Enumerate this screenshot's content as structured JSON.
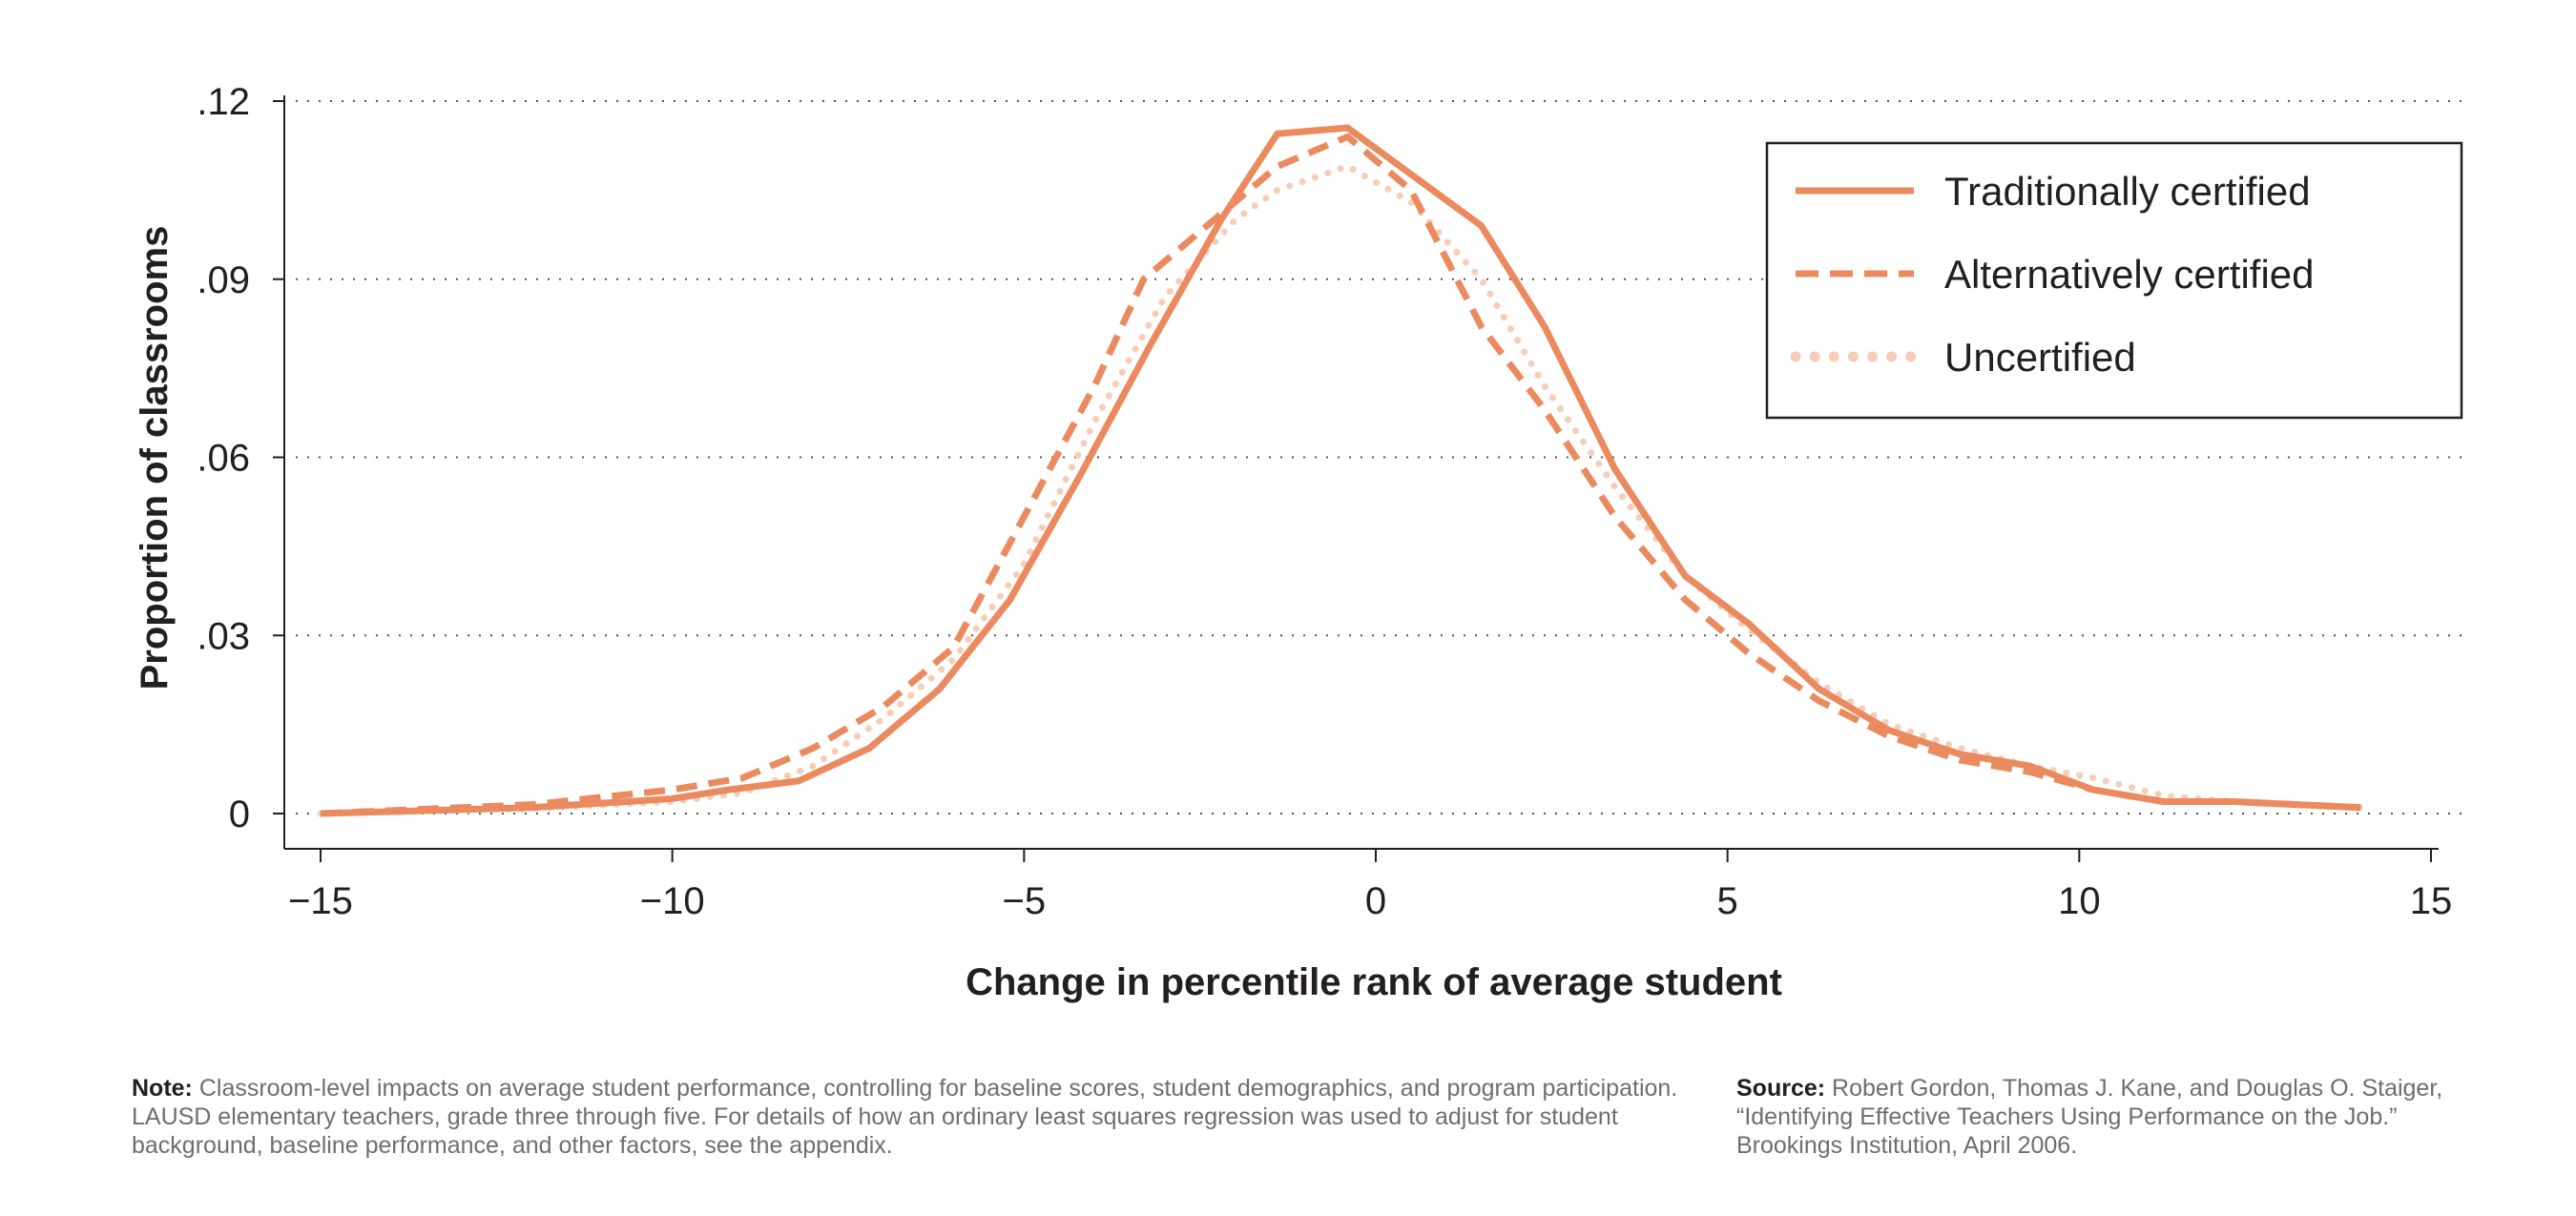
{
  "chart_data": {
    "type": "line",
    "title": "",
    "xlabel": "Change in percentile rank of average student",
    "ylabel": "Proportion of classrooms",
    "xlim": [
      -15,
      15
    ],
    "ylim": [
      0,
      0.12
    ],
    "xticks": [
      -15,
      -10,
      -5,
      0,
      5,
      10,
      15
    ],
    "xtick_labels": [
      "−15",
      "−10",
      "−5",
      "0",
      "5",
      "10",
      "15"
    ],
    "yticks": [
      0,
      0.03,
      0.06,
      0.09,
      0.12
    ],
    "ytick_labels": [
      "0",
      ".03",
      ".06",
      ".09",
      ".12"
    ],
    "grid": "horizontal dotted",
    "legend_position": "top-right",
    "series": [
      {
        "name": "Traditionally certified",
        "style": "solid",
        "color": "#EA8A5E",
        "x": [
          -15,
          -12,
          -10,
          -9.2,
          -8.2,
          -7.2,
          -6.2,
          -5.2,
          -4.2,
          -3.2,
          -2.2,
          -1.4,
          -0.4,
          1.5,
          2.4,
          3.4,
          4.4,
          5.3,
          6.3,
          7.3,
          8.3,
          9.3,
          10.2,
          11.2,
          12.2,
          14
        ],
        "y": [
          0,
          0.001,
          0.0025,
          0.004,
          0.0055,
          0.011,
          0.021,
          0.036,
          0.057,
          0.079,
          0.1,
          0.1145,
          0.1155,
          0.099,
          0.082,
          0.058,
          0.04,
          0.032,
          0.021,
          0.014,
          0.01,
          0.008,
          0.004,
          0.002,
          0.002,
          0.001
        ]
      },
      {
        "name": "Alternatively certified",
        "style": "dashed",
        "color": "#EA8A5E",
        "x": [
          -15,
          -12,
          -10,
          -9,
          -8,
          -7,
          -6,
          -5,
          -4,
          -3.3,
          -2.3,
          -1.4,
          -0.4,
          0.5,
          1.5,
          2.4,
          3.4,
          4.4,
          5.3,
          6.3,
          7.3,
          8.3,
          9.3,
          10.2,
          11.2,
          12.2,
          14
        ],
        "y": [
          0,
          0.0015,
          0.004,
          0.006,
          0.011,
          0.018,
          0.028,
          0.05,
          0.072,
          0.09,
          0.1,
          0.109,
          0.114,
          0.105,
          0.082,
          0.068,
          0.05,
          0.036,
          0.027,
          0.019,
          0.013,
          0.009,
          0.007,
          0.004,
          0.002,
          0.002,
          0.001
        ]
      },
      {
        "name": "Uncertified",
        "style": "dotted",
        "color": "#F6CDB7",
        "x": [
          -15,
          -12,
          -10,
          -9,
          -8,
          -7,
          -6,
          -5,
          -4,
          -3,
          -2,
          -1.4,
          -0.4,
          0.5,
          1.5,
          2.4,
          3.4,
          4.4,
          5.3,
          6.3,
          7.3,
          8.3,
          9.3,
          10.2,
          11.2,
          12.2,
          14
        ],
        "y": [
          0,
          0.0008,
          0.002,
          0.0035,
          0.008,
          0.016,
          0.026,
          0.042,
          0.066,
          0.087,
          0.1,
          0.105,
          0.109,
          0.103,
          0.09,
          0.072,
          0.055,
          0.04,
          0.031,
          0.022,
          0.015,
          0.011,
          0.008,
          0.006,
          0.003,
          0.002,
          0.001
        ]
      }
    ]
  },
  "footer": {
    "note_label": "Note:",
    "note_text": "Classroom-level impacts on average student performance, controlling for baseline scores, student demographics, and program participation. LAUSD elementary teachers, grade three through five. For details of how an ordinary least squares regression was used to adjust for student background, baseline performance, and other factors, see the appendix.",
    "source_label": "Source:",
    "source_text": "Robert Gordon, Thomas J. Kane, and Douglas O. Staiger, “Identifying Effective Teachers Using Performance on the Job.” Brookings Institution, April 2006."
  }
}
